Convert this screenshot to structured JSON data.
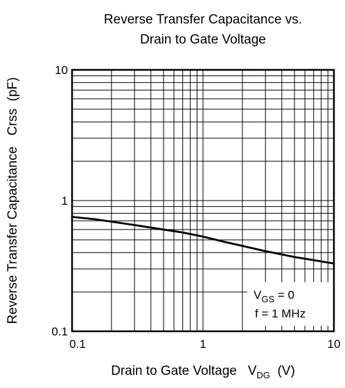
{
  "chart_data": {
    "type": "line",
    "title": [
      "Reverse Transfer Capacitance vs.",
      "Drain to Gate Voltage"
    ],
    "xlabel": {
      "main": "Drain to Gate Voltage",
      "symbol": "V",
      "subscript": "DG",
      "unit": "(V)"
    },
    "ylabel": "Reverse Transfer Capacitance   Crss  (pF)",
    "x_scale": "log",
    "y_scale": "log",
    "xlim": [
      0.1,
      10
    ],
    "ylim": [
      0.1,
      10
    ],
    "grid": true,
    "x_ticks": [
      {
        "value": 0.1,
        "label": "0.1"
      },
      {
        "value": 1,
        "label": "1"
      },
      {
        "value": 10,
        "label": "10"
      }
    ],
    "y_ticks": [
      {
        "value": 0.1,
        "label": "0.1"
      },
      {
        "value": 1,
        "label": "1"
      },
      {
        "value": 10,
        "label": "10"
      }
    ],
    "series": [
      {
        "x": [
          0.1,
          0.15,
          0.2,
          0.3,
          0.5,
          0.7,
          1,
          1.5,
          2,
          3,
          5,
          7,
          10
        ],
        "y": [
          0.75,
          0.72,
          0.69,
          0.65,
          0.6,
          0.57,
          0.53,
          0.48,
          0.45,
          0.41,
          0.37,
          0.35,
          0.33
        ]
      }
    ],
    "annotations": [
      {
        "symbol": "V",
        "subscript": "GS",
        "text": " = 0"
      },
      {
        "text": "f = 1 MHz"
      }
    ]
  }
}
